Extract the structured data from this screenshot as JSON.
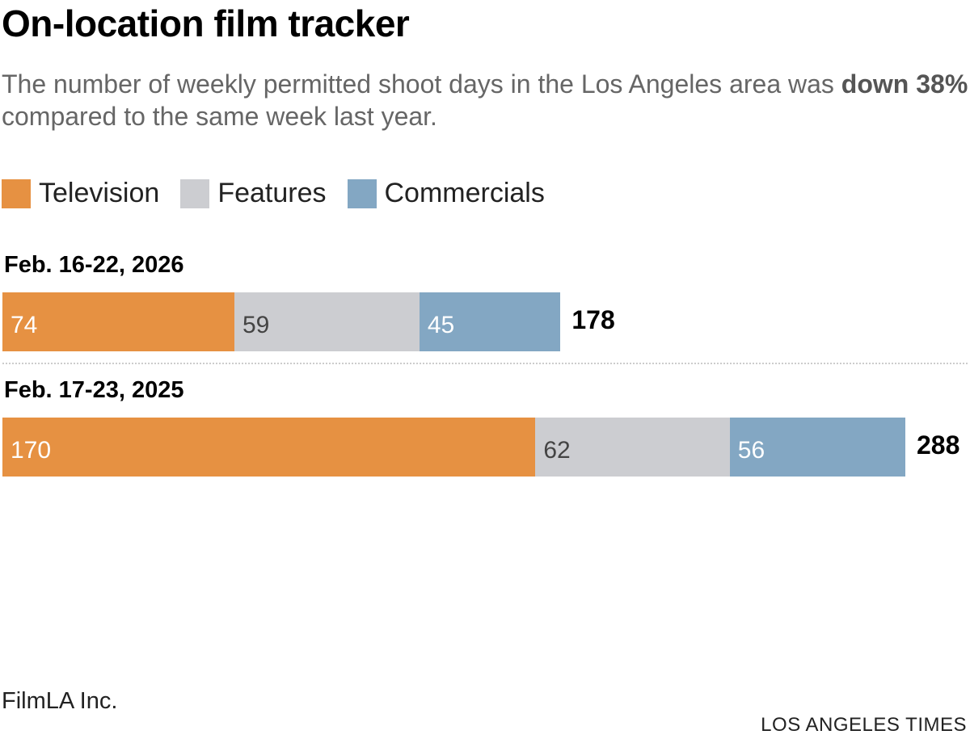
{
  "chart_data": {
    "type": "bar",
    "orientation": "horizontal-stacked",
    "title": "On-location film tracker",
    "subtitle_pre": "The number of weekly permitted shoot days in the Los Angeles area was ",
    "subtitle_bold": "down 38%",
    "subtitle_post": " compared to the same week last year.",
    "legend": [
      {
        "name": "Television",
        "color": "#e69142"
      },
      {
        "name": "Features",
        "color": "#cccdd1"
      },
      {
        "name": "Commercials",
        "color": "#83a7c3"
      }
    ],
    "categories": [
      "Feb. 16-22, 2026",
      "Feb. 17-23, 2025"
    ],
    "series": [
      {
        "name": "Television",
        "values": [
          74,
          170
        ]
      },
      {
        "name": "Features",
        "values": [
          59,
          62
        ]
      },
      {
        "name": "Commercials",
        "values": [
          45,
          56
        ]
      }
    ],
    "totals": [
      178,
      288
    ],
    "xlim": [
      0,
      288
    ]
  },
  "footer": {
    "source": "FilmLA Inc.",
    "credit": "LOS ANGELES TIMES"
  }
}
